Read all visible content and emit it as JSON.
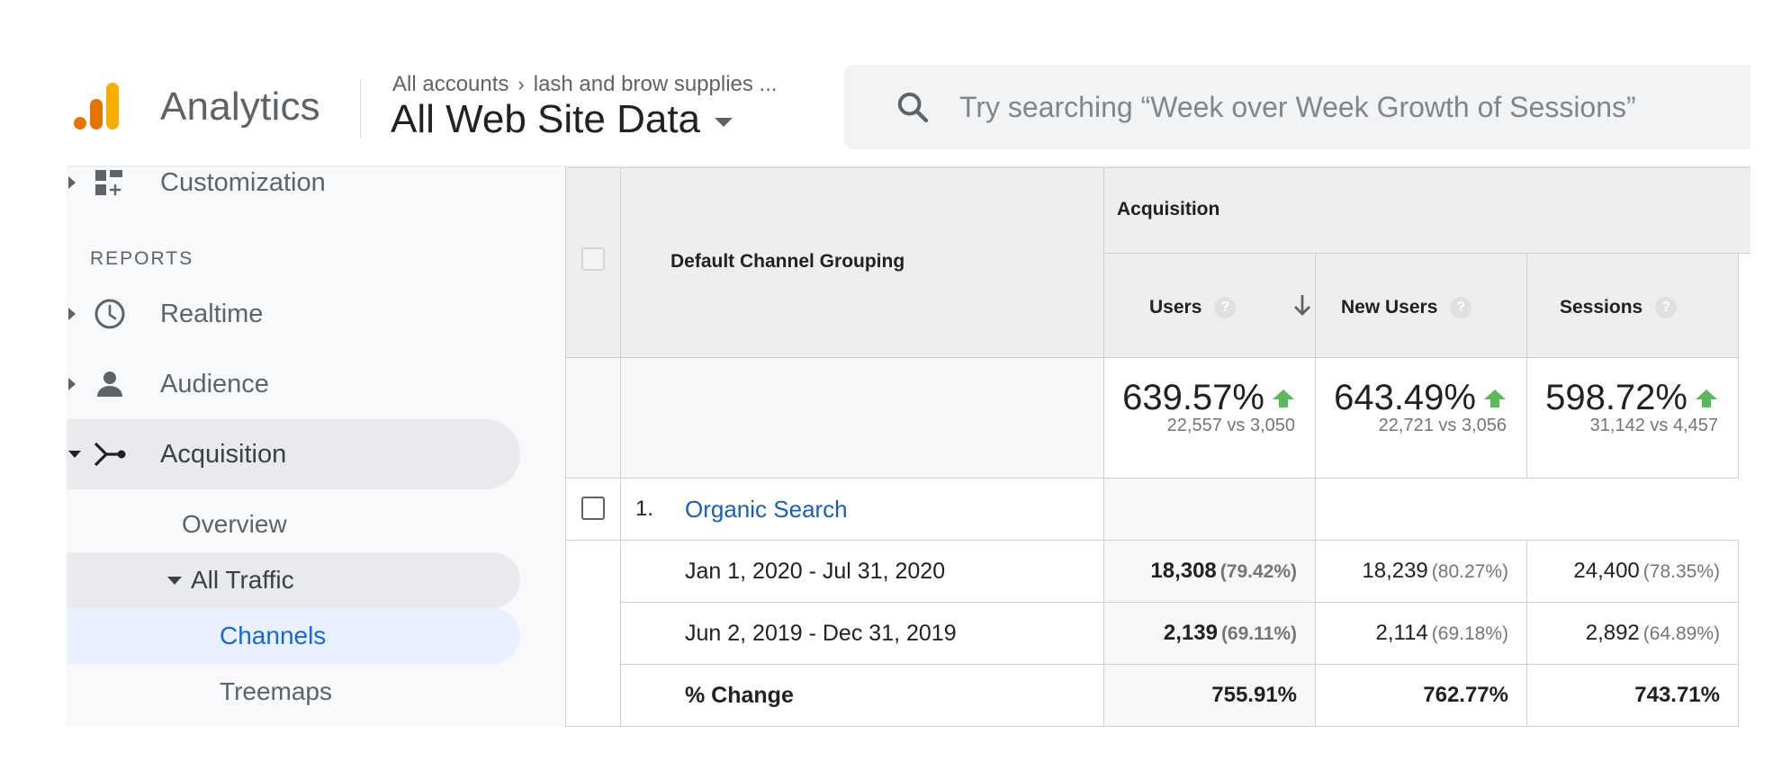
{
  "header": {
    "app_name": "Analytics",
    "breadcrumb": {
      "account": "All accounts",
      "property": "lash and brow supplies ..."
    },
    "view_name": "All Web Site Data",
    "search_placeholder": "Try searching “Week over Week Growth of Sessions”"
  },
  "sidebar": {
    "customization": "Customization",
    "reports_header": "REPORTS",
    "realtime": "Realtime",
    "audience": "Audience",
    "acquisition": "Acquisition",
    "overview": "Overview",
    "all_traffic": "All Traffic",
    "channels": "Channels",
    "treemaps": "Treemaps"
  },
  "table": {
    "dimension_header": "Default Channel Grouping",
    "group_header": "Acquisition",
    "columns": {
      "users": "Users",
      "new_users": "New Users",
      "sessions": "Sessions"
    },
    "summary": {
      "users": {
        "change": "639.57%",
        "compare": "22,557 vs 3,050"
      },
      "new_users": {
        "change": "643.49%",
        "compare": "22,721 vs 3,056"
      },
      "sessions": {
        "change": "598.72%",
        "compare": "31,142 vs 4,457"
      }
    },
    "rows": [
      {
        "index": "1.",
        "channel": "Organic Search",
        "period_1": {
          "label": "Jan 1, 2020 - Jul 31, 2020",
          "users": "18,308",
          "users_pct": "(79.42%)",
          "new_users": "18,239",
          "new_users_pct": "(80.27%)",
          "sessions": "24,400",
          "sessions_pct": "(78.35%)"
        },
        "period_2": {
          "label": "Jun 2, 2019 - Dec 31, 2019",
          "users": "2,139",
          "users_pct": "(69.11%)",
          "new_users": "2,114",
          "new_users_pct": "(69.18%)",
          "sessions": "2,892",
          "sessions_pct": "(64.89%)"
        },
        "change": {
          "label": "% Change",
          "users": "755.91%",
          "new_users": "762.77%",
          "sessions": "743.71%"
        }
      }
    ]
  },
  "colors": {
    "accent_blue": "#1967d2",
    "link_blue": "#1a5fb4",
    "up_green": "#5cb85c",
    "logo_orange": "#f9ab00",
    "logo_dark_orange": "#e37400"
  },
  "icons": {
    "logo": "analytics-logo",
    "search": "search-icon",
    "customization": "dashboard-plus-icon",
    "realtime": "clock-icon",
    "audience": "person-icon",
    "acquisition": "acquisition-fork-icon",
    "sort": "arrow-down-icon",
    "help": "question-mark-icon",
    "trend": "arrow-up-icon"
  }
}
